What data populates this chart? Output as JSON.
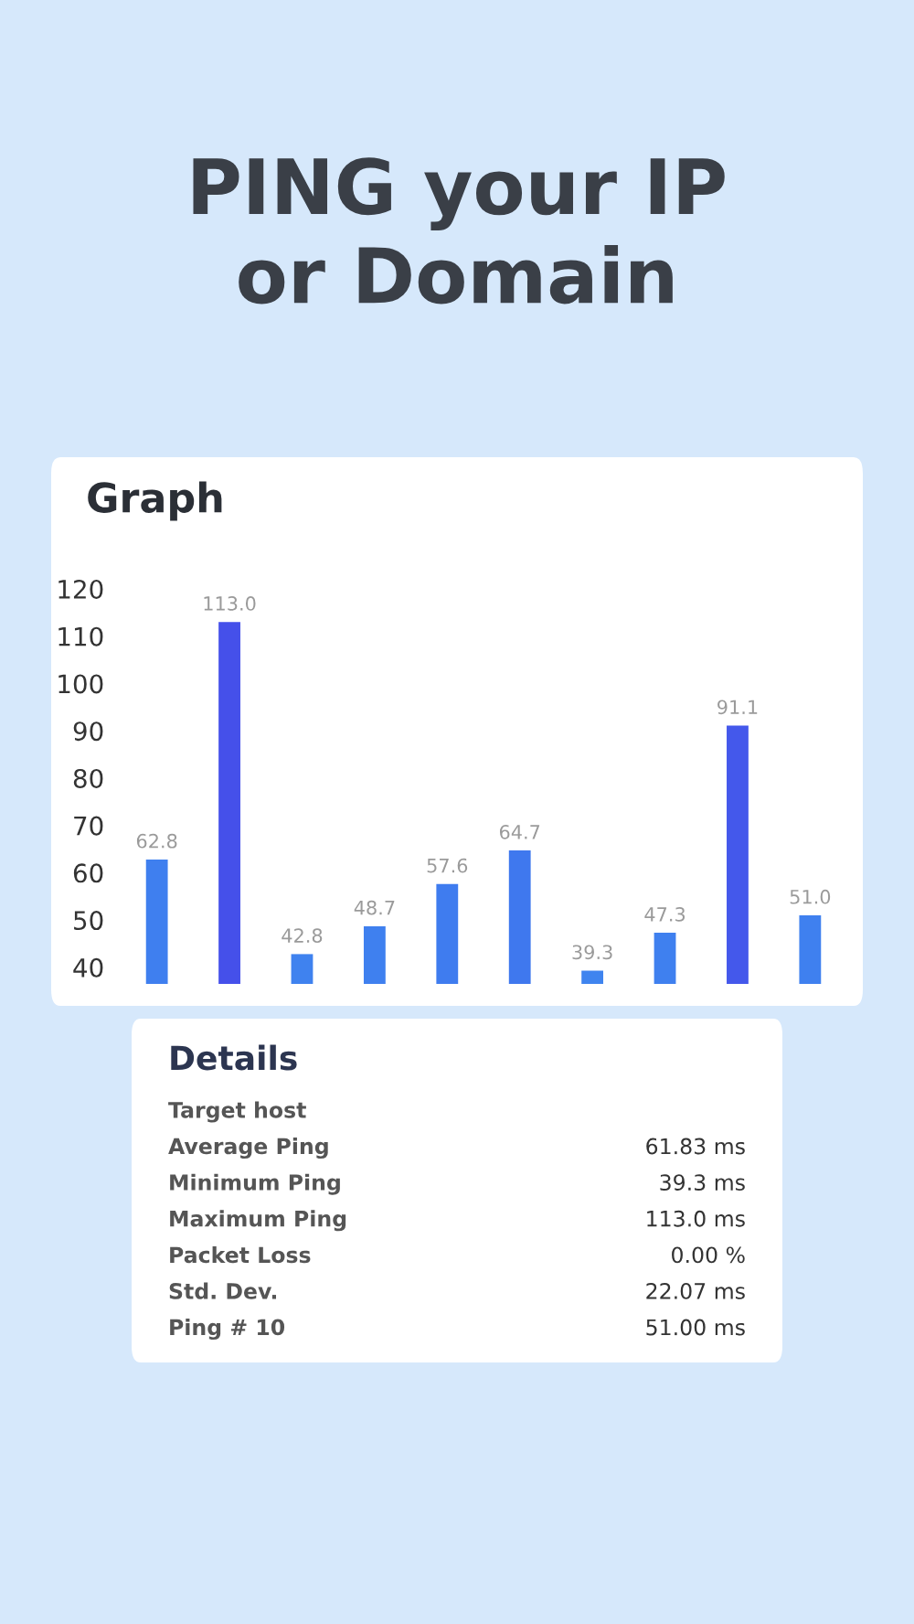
{
  "chart_data": {
    "type": "bar",
    "title": "PING your IP\nor Domain",
    "subtitle": "Graph",
    "categories": [
      null,
      null,
      null,
      null,
      null,
      null,
      null,
      null,
      null,
      null
    ],
    "values": [
      62.8,
      113.0,
      42.8,
      48.7,
      57.6,
      64.7,
      39.3,
      47.3,
      91.1,
      51.0
    ],
    "colors": [
      "#3f7fef",
      "#4550ea",
      "#3f82ef",
      "#3f80ef",
      "#3f7cef",
      "#3f78ee",
      "#3f84ef",
      "#3f80ef",
      "#4458eb",
      "#3f80ef"
    ],
    "ylim": [
      36.5,
      120
    ],
    "yticks": [
      40,
      50,
      60,
      70,
      80,
      90,
      100,
      110,
      120
    ],
    "tick_labels": "y",
    "value_labels": [
      "62.8",
      "113.0",
      "42.8",
      "48.7",
      "57.6",
      "64.7",
      "39.3",
      "47.3",
      "91.1",
      "51.0"
    ],
    "annotations": [
      "Details",
      "Target host",
      "Average Ping",
      "Minimum Ping",
      "Maximum Ping",
      "Packet Loss",
      "Std. Dev.",
      "Ping # 10",
      "61.83 ms",
      "39.3 ms",
      "113.0 ms",
      "0.00 %",
      "22.07 ms",
      "51.00 ms"
    ]
  }
}
